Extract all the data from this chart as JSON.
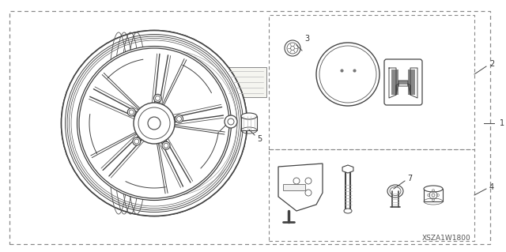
{
  "background_color": "#ffffff",
  "border_color": "#555555",
  "figsize": [
    6.4,
    3.19
  ],
  "dpi": 100,
  "diagram_code": "XSZA1W1800",
  "line_color": "#333333",
  "text_color": "#333333"
}
